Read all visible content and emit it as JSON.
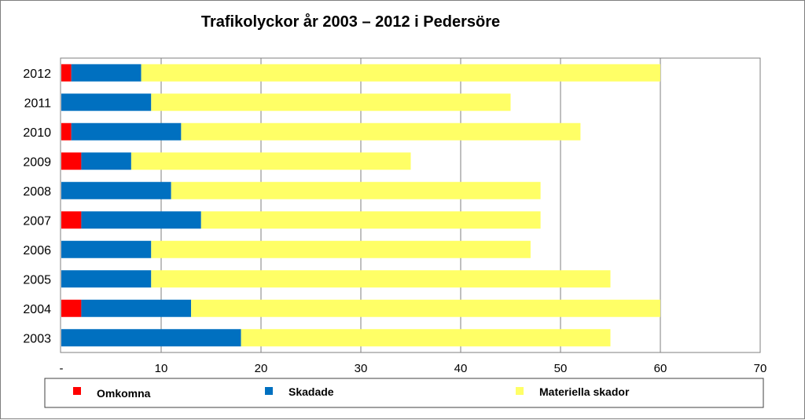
{
  "chart_data": {
    "type": "bar",
    "orientation": "horizontal",
    "stacked": true,
    "title": "Trafikolyckor år 2003 – 2012 i Pedersöre",
    "categories": [
      "2012",
      "2011",
      "2010",
      "2009",
      "2008",
      "2007",
      "2006",
      "2005",
      "2004",
      "2003"
    ],
    "series": [
      {
        "name": "Omkomna",
        "color": "#ff0000",
        "values": [
          1,
          0,
          1,
          2,
          0,
          2,
          0,
          0,
          2,
          0
        ]
      },
      {
        "name": "Skadade",
        "color": "#0070c0",
        "values": [
          7,
          9,
          11,
          5,
          11,
          12,
          9,
          9,
          11,
          18
        ]
      },
      {
        "name": "Materiella skador",
        "color": "#ffff66",
        "values": [
          52,
          36,
          40,
          28,
          37,
          34,
          38,
          46,
          47,
          37
        ]
      }
    ],
    "xlim": [
      0,
      70
    ],
    "xticks": [
      0,
      10,
      20,
      30,
      40,
      50,
      60,
      70
    ],
    "xtick_labels": [
      "-",
      "10",
      "20",
      "30",
      "40",
      "50",
      "60",
      "70"
    ],
    "grid": true,
    "legend_position": "bottom"
  }
}
